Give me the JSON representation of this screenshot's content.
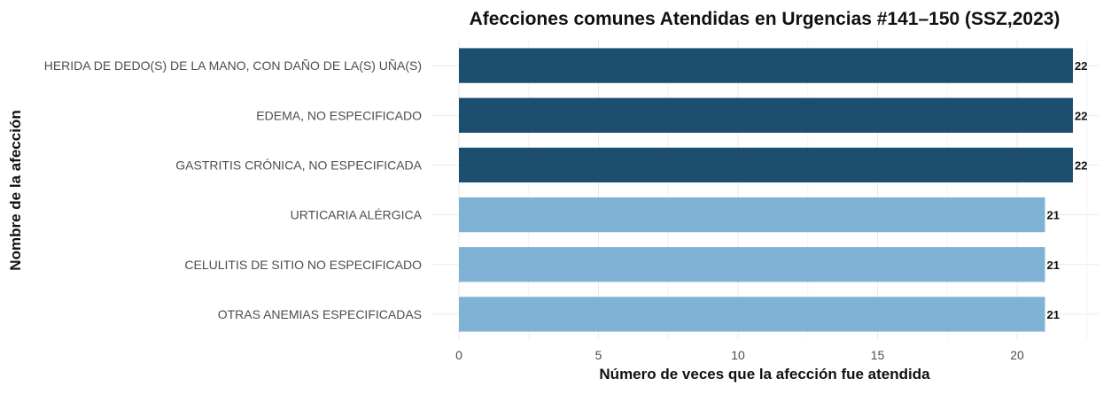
{
  "chart_data": {
    "type": "bar",
    "orientation": "horizontal",
    "title": "Afecciones comunes Atendidas en Urgencias #141–150 (SSZ,2023)",
    "xlabel": "Número de veces que la afección fue atendida",
    "ylabel": "Nombre de la afección",
    "categories": [
      "HERIDA DE DEDO(S) DE LA MANO, CON DAÑO DE LA(S) UÑA(S)",
      "EDEMA, NO ESPECIFICADO",
      "GASTRITIS CRÓNICA, NO ESPECIFICADA",
      "URTICARIA ALÉRGICA",
      "CELULITIS DE SITIO NO ESPECIFICADO",
      "OTRAS ANEMIAS ESPECIFICADAS"
    ],
    "values": [
      22,
      22,
      22,
      21,
      21,
      21
    ],
    "xlim": [
      0,
      23.1
    ],
    "xticks": [
      0,
      5,
      10,
      15,
      20
    ],
    "grid": true,
    "legend": "none",
    "colors": {
      "high": "#1c4e6f",
      "low": "#7fb2d5"
    }
  }
}
